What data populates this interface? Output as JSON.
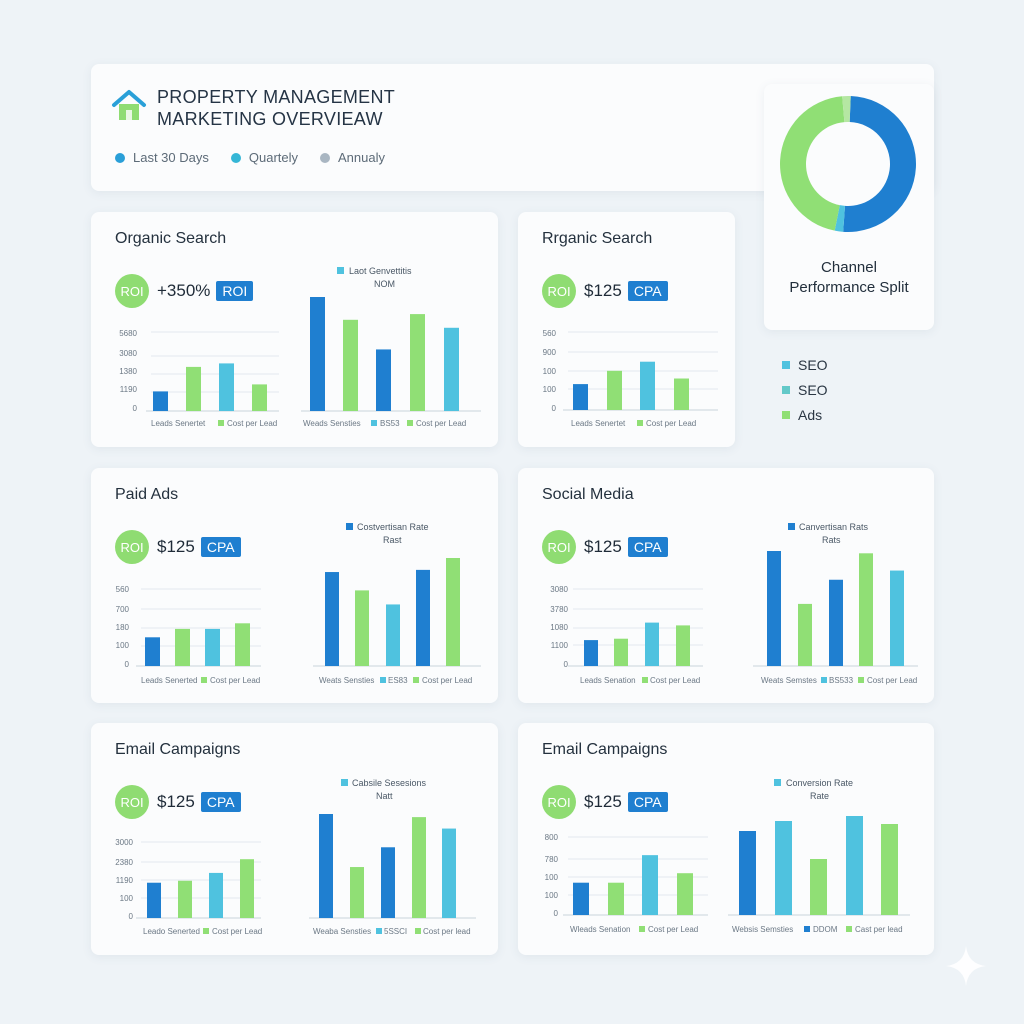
{
  "header": {
    "title_line1": "PROPERTY MANAGEMENT",
    "title_line2": "MARKETING OVERVIEAW",
    "filters": [
      {
        "label": "Last 30 Days",
        "color": "#2a9fd8"
      },
      {
        "label": "Quartely",
        "color": "#35b6d6"
      },
      {
        "label": "Annualy",
        "color": "#a9b6c2"
      }
    ]
  },
  "donut": {
    "label_line1": "Channel",
    "label_line2": "Performance Split",
    "segments": [
      {
        "value": 50.5,
        "color": "#1f7fd0"
      },
      {
        "value": 2.0,
        "color": "#4fc2df"
      },
      {
        "value": 45.5,
        "color": "#90df75"
      },
      {
        "value": 2.0,
        "color": "#b5e7a3"
      }
    ]
  },
  "legend": [
    {
      "label": "SEO",
      "color": "#4fc2df"
    },
    {
      "label": "SEO",
      "color": "#63c9c9"
    },
    {
      "label": "Ads",
      "color": "#90df75"
    }
  ],
  "colors": {
    "blue": "#1f7fd0",
    "green": "#90df75",
    "cyan": "#4fc2df"
  },
  "panels": [
    {
      "title": "Organic Search",
      "roi": "ROI",
      "value": "+350%",
      "badge": "ROI",
      "small_ticks": [
        "5680",
        "3080",
        "1380",
        "1190",
        "0"
      ],
      "small_legend": [
        "Leads Senertet",
        "Cost per Lead"
      ],
      "large_title": [
        "Laot Genvettitis",
        "NOM"
      ],
      "large_legend": [
        "Weads Sensties",
        "BS53",
        "Cost per Lead"
      ]
    },
    {
      "title": "Rrganic Search",
      "roi": "ROI",
      "value": "$125",
      "badge": "CPA",
      "small_ticks": [
        "560",
        "900",
        "100",
        "100",
        "0"
      ],
      "small_legend": [
        "Leads Senertet",
        "Cost per Lead"
      ],
      "large_title": [],
      "large_legend": []
    },
    {
      "title": "Paid Ads",
      "roi": "ROI",
      "value": "$125",
      "badge": "CPA",
      "small_ticks": [
        "560",
        "700",
        "180",
        "100",
        "0"
      ],
      "small_legend": [
        "Leads Senerted",
        "Cost per Lead"
      ],
      "large_title": [
        "Costvertisan Rate",
        "Rast"
      ],
      "large_legend": [
        "Weats Sensties",
        "ES83",
        "Cost per Lead"
      ]
    },
    {
      "title": "Social Media",
      "roi": "ROI",
      "value": "$125",
      "badge": "CPA",
      "small_ticks": [
        "3080",
        "3780",
        "1080",
        "1100",
        "0"
      ],
      "small_legend": [
        "Leads Senation",
        "Cost per Lead"
      ],
      "large_title": [
        "Canvertisan Rats",
        "Rats"
      ],
      "large_legend": [
        "Weats Semstes",
        "BS533",
        "Cost per Lead"
      ]
    },
    {
      "title": "Email Campaigns",
      "roi": "ROI",
      "value": "$125",
      "badge": "CPA",
      "small_ticks": [
        "3000",
        "2380",
        "1190",
        "100",
        "0"
      ],
      "small_legend": [
        "Leado Senerted",
        "Cost per Lead"
      ],
      "large_title": [
        "Cabsile Sesesions",
        "Natt"
      ],
      "large_legend": [
        "Weaba Sensties",
        "5SSCI",
        "Cost per lead"
      ]
    },
    {
      "title": "Email Campaigns",
      "roi": "ROI",
      "value": "$125",
      "badge": "CPA",
      "small_ticks": [
        "800",
        "780",
        "100",
        "100",
        "0"
      ],
      "small_legend": [
        "Wleads Senation",
        "Cost per Lead"
      ],
      "large_title": [
        "Conversion Rate",
        "Rate"
      ],
      "large_legend": [
        "Websis Semsties",
        "DDOM",
        "Cast per lead"
      ]
    }
  ],
  "chart_data": [
    {
      "type": "bar",
      "panel": "Organic Search (small)",
      "values": [
        28,
        63,
        68,
        38
      ],
      "colors": [
        "#1f7fd0",
        "#90df75",
        "#4fc2df",
        "#90df75"
      ],
      "ylim": [
        0,
        100
      ]
    },
    {
      "type": "bar",
      "panel": "Organic Search (large)",
      "values": [
        100,
        80,
        54,
        85,
        73
      ],
      "colors": [
        "#1f7fd0",
        "#90df75",
        "#1f7fd0",
        "#90df75",
        "#4fc2df"
      ],
      "ylim": [
        0,
        100
      ]
    },
    {
      "type": "bar",
      "panel": "Rrganic Search (small)",
      "values": [
        37,
        56,
        69,
        45
      ],
      "colors": [
        "#1f7fd0",
        "#90df75",
        "#4fc2df",
        "#90df75"
      ],
      "ylim": [
        0,
        100
      ]
    },
    {
      "type": "bar",
      "panel": "Paid Ads (small)",
      "values": [
        41,
        53,
        53,
        61
      ],
      "colors": [
        "#1f7fd0",
        "#90df75",
        "#4fc2df",
        "#90df75"
      ],
      "ylim": [
        0,
        100
      ]
    },
    {
      "type": "bar",
      "panel": "Paid Ads (large)",
      "values": [
        87,
        70,
        57,
        89,
        100
      ],
      "colors": [
        "#1f7fd0",
        "#90df75",
        "#4fc2df",
        "#1f7fd0",
        "#90df75"
      ],
      "ylim": [
        0,
        100
      ]
    },
    {
      "type": "bar",
      "panel": "Social Media (small)",
      "values": [
        37,
        39,
        62,
        58
      ],
      "colors": [
        "#1f7fd0",
        "#90df75",
        "#4fc2df",
        "#90df75"
      ],
      "ylim": [
        0,
        100
      ]
    },
    {
      "type": "bar",
      "panel": "Social Media (large)",
      "values": [
        100,
        54,
        75,
        98,
        83
      ],
      "colors": [
        "#1f7fd0",
        "#90df75",
        "#1f7fd0",
        "#90df75",
        "#4fc2df"
      ],
      "ylim": [
        0,
        100
      ]
    },
    {
      "type": "bar",
      "panel": "Email Campaigns (small, left)",
      "values": [
        36,
        38,
        46,
        60
      ],
      "colors": [
        "#1f7fd0",
        "#90df75",
        "#4fc2df",
        "#90df75"
      ],
      "ylim": [
        0,
        100
      ]
    },
    {
      "type": "bar",
      "panel": "Email Campaigns (large, left)",
      "values": [
        100,
        49,
        68,
        97,
        86
      ],
      "colors": [
        "#1f7fd0",
        "#90df75",
        "#1f7fd0",
        "#90df75",
        "#4fc2df"
      ],
      "ylim": [
        0,
        100
      ]
    },
    {
      "type": "bar",
      "panel": "Email Campaigns (small, right)",
      "values": [
        34,
        34,
        63,
        44
      ],
      "colors": [
        "#1f7fd0",
        "#90df75",
        "#4fc2df",
        "#90df75"
      ],
      "ylim": [
        0,
        100
      ]
    },
    {
      "type": "bar",
      "panel": "Email Campaigns (large, right)",
      "values": [
        84,
        94,
        56,
        99,
        91
      ],
      "colors": [
        "#1f7fd0",
        "#4fc2df",
        "#90df75",
        "#4fc2df",
        "#90df75"
      ],
      "ylim": [
        0,
        100
      ]
    }
  ]
}
